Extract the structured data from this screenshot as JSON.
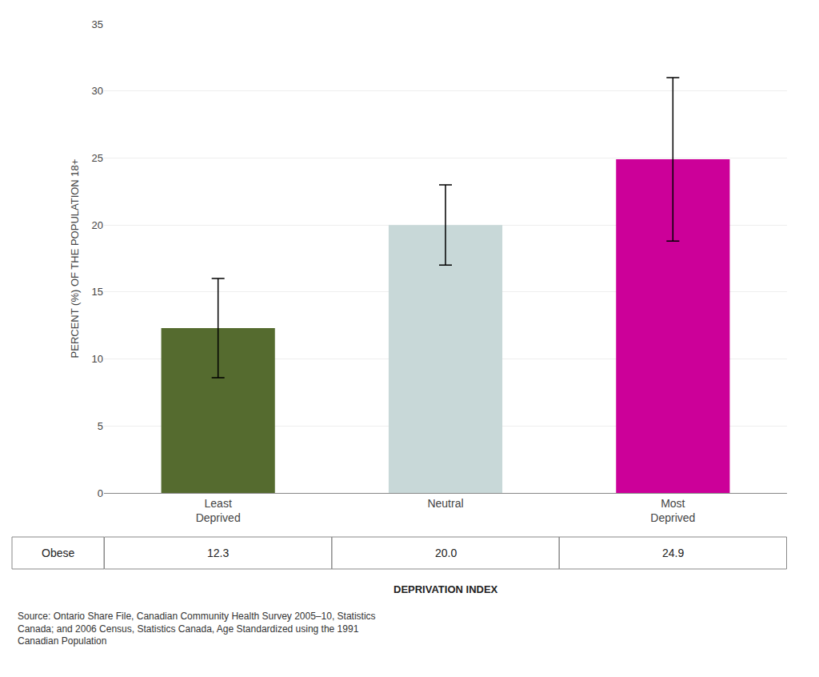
{
  "chart_data": {
    "type": "bar",
    "categories": [
      "Least\nDeprived",
      "Neutral",
      "Most\nDeprived"
    ],
    "values": [
      12.3,
      20.0,
      24.9
    ],
    "errors_upper": [
      3.7,
      3.0,
      6.1
    ],
    "errors_lower": [
      3.7,
      3.0,
      6.1
    ],
    "colors": [
      "#556B2F",
      "#C8D8D8",
      "#CC0099"
    ],
    "ylabel": "PERCENT (%) OF THE POPULATION 18+",
    "xlabel": "DEPRIVATION INDEX",
    "ylim": [
      0,
      35
    ],
    "yticks": [
      0,
      5,
      10,
      15,
      20,
      25,
      30,
      35
    ],
    "grid": true,
    "table": {
      "row_label": "Obese",
      "values": [
        "12.3",
        "20.0",
        "24.9"
      ]
    },
    "source": "Source: Ontario Share File, Canadian Community Health Survey 2005–10, Statistics\nCanada; and 2006 Census, Statistics Canada, Age Standardized using the 1991\nCanadian Population"
  }
}
